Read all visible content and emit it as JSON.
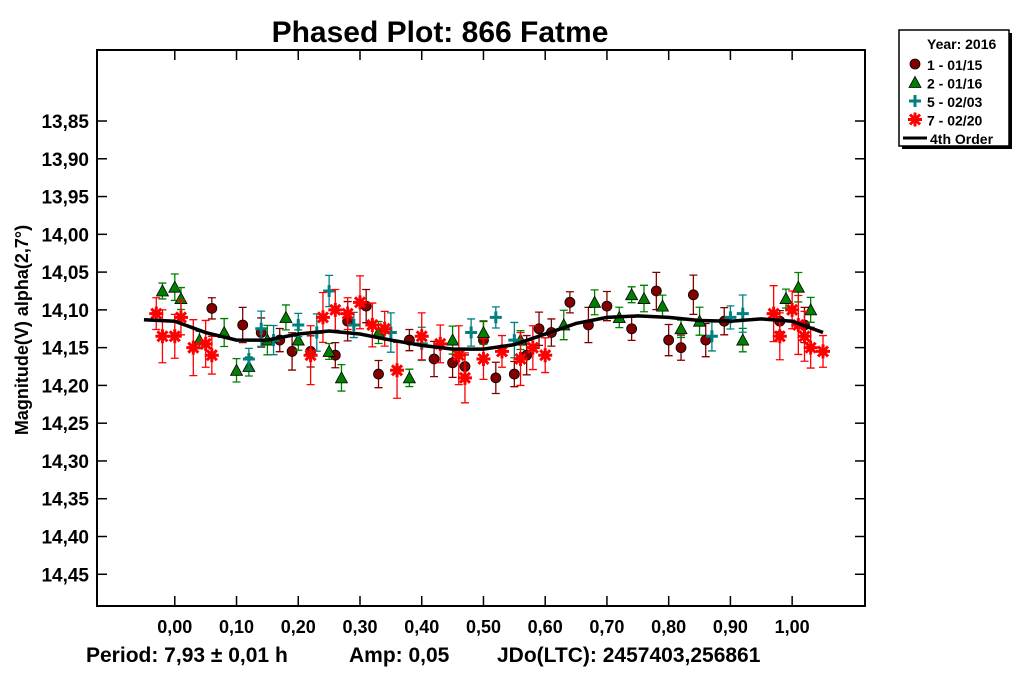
{
  "chart_data": {
    "type": "scatter",
    "title": "Phased Plot: 866 Fatme",
    "xlabel": "",
    "ylabel": "Magnitude(V) alpha(2,7°)",
    "xlim": [
      -0.126,
      1.118
    ],
    "ylim": [
      13.756,
      14.492
    ],
    "y_inverted": true,
    "grid": false,
    "x_ticks": [
      "0,00",
      "0,10",
      "0,20",
      "0,30",
      "0,40",
      "0,50",
      "0,60",
      "0,70",
      "0,80",
      "0,90",
      "1,00"
    ],
    "x_tick_values": [
      0,
      0.1,
      0.2,
      0.3,
      0.4,
      0.5,
      0.6,
      0.7,
      0.8,
      0.9,
      1.0
    ],
    "y_ticks": [
      "13,85",
      "13,90",
      "13,95",
      "14,00",
      "14,05",
      "14,10",
      "14,15",
      "14,20",
      "14,25",
      "14,30",
      "14,35",
      "14,40",
      "14,45"
    ],
    "y_tick_values": [
      13.85,
      13.9,
      13.95,
      14.0,
      14.05,
      14.1,
      14.15,
      14.2,
      14.25,
      14.3,
      14.35,
      14.4,
      14.45
    ],
    "legend": {
      "placement": "outside-top-right",
      "title": "Year: 2016",
      "entries": [
        "1 - 01/15",
        "2 - 01/16",
        "5 - 02/03",
        "7 - 02/20",
        "4th Order"
      ]
    },
    "series": [
      {
        "name": "1 - 01/15",
        "marker": "circle",
        "color": "#800000",
        "err": 0.02,
        "points": [
          [
            0.06,
            14.098
          ],
          [
            0.11,
            14.12
          ],
          [
            0.14,
            14.13
          ],
          [
            0.17,
            14.14
          ],
          [
            0.19,
            14.155
          ],
          [
            0.22,
            14.155
          ],
          [
            0.26,
            14.16
          ],
          [
            0.28,
            14.115
          ],
          [
            0.31,
            14.095
          ],
          [
            0.33,
            14.185
          ],
          [
            0.38,
            14.14
          ],
          [
            0.42,
            14.165
          ],
          [
            0.45,
            14.17
          ],
          [
            0.47,
            14.175
          ],
          [
            0.5,
            14.14
          ],
          [
            0.52,
            14.19
          ],
          [
            0.55,
            14.185
          ],
          [
            0.57,
            14.16
          ],
          [
            0.59,
            14.125
          ],
          [
            0.61,
            14.13
          ],
          [
            0.64,
            14.09
          ],
          [
            0.67,
            14.12
          ],
          [
            0.7,
            14.095
          ],
          [
            0.74,
            14.125
          ],
          [
            0.78,
            14.075
          ],
          [
            0.8,
            14.14
          ],
          [
            0.82,
            14.15
          ],
          [
            0.84,
            14.08
          ],
          [
            0.86,
            14.14
          ],
          [
            0.89,
            14.115
          ],
          [
            0.98,
            14.115
          ],
          [
            1.02,
            14.12
          ]
        ]
      },
      {
        "name": "2 - 01/16",
        "marker": "triangle",
        "color": "#008000",
        "err": 0.015,
        "points": [
          [
            -0.02,
            14.075
          ],
          [
            0.0,
            14.07
          ],
          [
            0.01,
            14.085
          ],
          [
            0.04,
            14.14
          ],
          [
            0.08,
            14.13
          ],
          [
            0.1,
            14.18
          ],
          [
            0.12,
            14.175
          ],
          [
            0.15,
            14.14
          ],
          [
            0.18,
            14.11
          ],
          [
            0.2,
            14.14
          ],
          [
            0.25,
            14.155
          ],
          [
            0.27,
            14.19
          ],
          [
            0.33,
            14.13
          ],
          [
            0.38,
            14.19
          ],
          [
            0.45,
            14.14
          ],
          [
            0.5,
            14.13
          ],
          [
            0.56,
            14.14
          ],
          [
            0.63,
            14.12
          ],
          [
            0.68,
            14.09
          ],
          [
            0.72,
            14.11
          ],
          [
            0.74,
            14.08
          ],
          [
            0.76,
            14.085
          ],
          [
            0.79,
            14.095
          ],
          [
            0.82,
            14.125
          ],
          [
            0.85,
            14.115
          ],
          [
            0.92,
            14.14
          ],
          [
            0.99,
            14.085
          ],
          [
            1.01,
            14.07
          ],
          [
            1.03,
            14.1
          ]
        ]
      },
      {
        "name": "5 - 02/03",
        "marker": "plus",
        "color": "#008080",
        "err": 0.02,
        "points": [
          [
            0.12,
            14.165
          ],
          [
            0.14,
            14.125
          ],
          [
            0.16,
            14.14
          ],
          [
            0.2,
            14.12
          ],
          [
            0.23,
            14.13
          ],
          [
            0.25,
            14.075
          ],
          [
            0.29,
            14.12
          ],
          [
            0.35,
            14.13
          ],
          [
            0.4,
            14.145
          ],
          [
            0.48,
            14.13
          ],
          [
            0.52,
            14.11
          ],
          [
            0.55,
            14.14
          ],
          [
            0.87,
            14.135
          ],
          [
            0.9,
            14.11
          ],
          [
            0.92,
            14.105
          ]
        ]
      },
      {
        "name": "7 - 02/20",
        "marker": "star",
        "color": "#ff0000",
        "err": 0.03,
        "points": [
          [
            -0.03,
            14.105
          ],
          [
            -0.02,
            14.135
          ],
          [
            0.0,
            14.135
          ],
          [
            0.01,
            14.11
          ],
          [
            0.03,
            14.15
          ],
          [
            0.05,
            14.145
          ],
          [
            0.06,
            14.16
          ],
          [
            0.22,
            14.16
          ],
          [
            0.24,
            14.11
          ],
          [
            0.26,
            14.1
          ],
          [
            0.28,
            14.105
          ],
          [
            0.3,
            14.09
          ],
          [
            0.32,
            14.12
          ],
          [
            0.34,
            14.125
          ],
          [
            0.36,
            14.18
          ],
          [
            0.4,
            14.135
          ],
          [
            0.43,
            14.145
          ],
          [
            0.46,
            14.16
          ],
          [
            0.47,
            14.19
          ],
          [
            0.5,
            14.165
          ],
          [
            0.53,
            14.155
          ],
          [
            0.56,
            14.165
          ],
          [
            0.58,
            14.15
          ],
          [
            0.6,
            14.16
          ],
          [
            0.97,
            14.105
          ],
          [
            0.98,
            14.135
          ],
          [
            1.0,
            14.1
          ],
          [
            1.01,
            14.12
          ],
          [
            1.02,
            14.135
          ],
          [
            1.03,
            14.15
          ],
          [
            1.05,
            14.155
          ]
        ]
      }
    ],
    "fit": {
      "name": "4th Order",
      "color": "#000000",
      "points": [
        [
          -0.05,
          14.113
        ],
        [
          0.0,
          14.115
        ],
        [
          0.05,
          14.13
        ],
        [
          0.1,
          14.14
        ],
        [
          0.15,
          14.14
        ],
        [
          0.2,
          14.132
        ],
        [
          0.25,
          14.128
        ],
        [
          0.3,
          14.132
        ],
        [
          0.35,
          14.14
        ],
        [
          0.4,
          14.147
        ],
        [
          0.45,
          14.152
        ],
        [
          0.5,
          14.152
        ],
        [
          0.55,
          14.146
        ],
        [
          0.6,
          14.132
        ],
        [
          0.65,
          14.118
        ],
        [
          0.7,
          14.11
        ],
        [
          0.75,
          14.108
        ],
        [
          0.8,
          14.11
        ],
        [
          0.85,
          14.114
        ],
        [
          0.9,
          14.115
        ],
        [
          0.95,
          14.112
        ],
        [
          1.0,
          14.115
        ],
        [
          1.05,
          14.13
        ]
      ]
    },
    "footer": {
      "period": "Period: 7,93 ± 0,01 h",
      "amp": "Amp: 0,05",
      "jdo": "JDo(LTC): 2457403,256861"
    }
  }
}
